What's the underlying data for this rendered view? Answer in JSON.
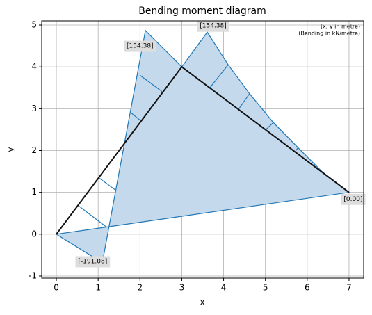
{
  "chart_data": {
    "type": "bending-diagram",
    "title": "Bending moment diagram",
    "xlabel": "x",
    "ylabel": "y",
    "note": [
      "(x, y in metre)",
      "(Bending in kN/metre)"
    ],
    "xlim": [
      -0.35,
      7.35
    ],
    "ylim": [
      -1.05,
      5.1
    ],
    "xticks": [
      0,
      1,
      2,
      3,
      4,
      5,
      6,
      7
    ],
    "yticks": [
      -1,
      0,
      1,
      2,
      3,
      4,
      5
    ],
    "grid": true,
    "frame": {
      "color": "#111111",
      "x": [
        0,
        3,
        7
      ],
      "y": [
        0,
        4,
        1
      ]
    },
    "diagram": {
      "fill": "#c5d9ec",
      "edge": "#1f77b4",
      "x": [
        0,
        1.1,
        2.13,
        3,
        3.61,
        4.11,
        4.62,
        5.19,
        5.78,
        6.35,
        7
      ],
      "y": [
        0,
        -0.68,
        4.87,
        4,
        4.83,
        4.05,
        3.36,
        2.67,
        2.07,
        1.5,
        1
      ]
    },
    "hatches": [
      {
        "x": [
          0.53,
          1.2
        ],
        "y": [
          0.68,
          0.17
        ]
      },
      {
        "x": [
          1.0,
          1.41
        ],
        "y": [
          1.36,
          1.06
        ]
      },
      {
        "x": [
          1.8,
          2.01
        ],
        "y": [
          2.89,
          2.72
        ]
      },
      {
        "x": [
          2.0,
          2.53
        ],
        "y": [
          3.8,
          3.41
        ]
      },
      {
        "x": [
          4.11,
          3.67
        ],
        "y": [
          4.05,
          3.5
        ]
      },
      {
        "x": [
          4.62,
          4.36
        ],
        "y": [
          3.36,
          2.99
        ]
      },
      {
        "x": [
          5.19,
          5.0
        ],
        "y": [
          2.67,
          2.49
        ]
      },
      {
        "x": [
          5.78,
          5.73
        ],
        "y": [
          2.07,
          2.0
        ]
      },
      {
        "x": [
          6.35,
          6.33
        ],
        "y": [
          1.5,
          1.48
        ]
      }
    ],
    "annotations": [
      {
        "text": "[154.38]",
        "x": 2.0,
        "y": 4.5
      },
      {
        "text": "[154.38]",
        "x": 3.75,
        "y": 4.98
      },
      {
        "text": "[-191.08]",
        "x": 0.87,
        "y": -0.65
      },
      {
        "text": "[0.00]",
        "x": 7.1,
        "y": 0.84
      }
    ]
  }
}
